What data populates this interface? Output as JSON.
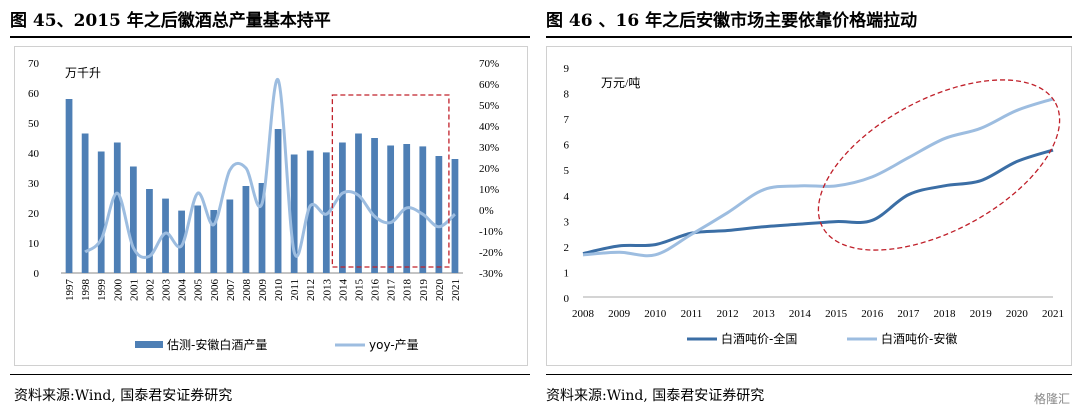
{
  "left": {
    "title": "图 45、2015 年之后徽酒总产量基本持平",
    "source": "资料来源:Wind, 国泰君安证券研究",
    "chart_data": {
      "type": "bar",
      "categories": [
        "1997",
        "1998",
        "1999",
        "2000",
        "2001",
        "2002",
        "2003",
        "2004",
        "2005",
        "2006",
        "2007",
        "2008",
        "2009",
        "2010",
        "2011",
        "2012",
        "2013",
        "2014",
        "2015",
        "2016",
        "2017",
        "2018",
        "2019",
        "2020",
        "2021"
      ],
      "unit_label": "万千升",
      "y_left_ticks": [
        "0",
        "10",
        "20",
        "30",
        "40",
        "50",
        "60",
        "70"
      ],
      "y_right_ticks": [
        "-30%",
        "-20%",
        "-10%",
        "0%",
        "10%",
        "20%",
        "30%",
        "40%",
        "50%",
        "60%",
        "70%"
      ],
      "ylim_left": [
        0,
        70
      ],
      "ylim_right": [
        -30,
        70
      ],
      "series": [
        {
          "name": "估测-安徽白酒产量",
          "type": "bar",
          "axis": "left",
          "color": "#4e7fb5",
          "values": [
            58,
            46.5,
            40.5,
            43.5,
            35.5,
            28,
            24.8,
            20.8,
            22.5,
            21,
            24.5,
            29,
            30,
            48,
            39.5,
            40.8,
            40.2,
            43.5,
            46.5,
            45,
            42.5,
            43,
            42.2,
            39,
            38
          ]
        },
        {
          "name": "yoy-产量",
          "type": "line",
          "axis": "right",
          "color": "#9dbde0",
          "values": [
            null,
            -20,
            -14,
            8,
            -18,
            -22,
            -11,
            -17,
            8,
            -7,
            19,
            20,
            3,
            62,
            -20,
            2,
            -2,
            8,
            7,
            -3,
            -6,
            1,
            -2,
            -8,
            -2
          ]
        }
      ]
    }
  },
  "right": {
    "title": "图 46 、16 年之后安徽市场主要依靠价格端拉动",
    "source": "资料来源:Wind, 国泰君安证券研究",
    "chart_data": {
      "type": "line",
      "categories": [
        "2008",
        "2009",
        "2010",
        "2011",
        "2012",
        "2013",
        "2014",
        "2015",
        "2016",
        "2017",
        "2018",
        "2019",
        "2020",
        "2021"
      ],
      "unit_label": "万元/吨",
      "y_ticks": [
        "0",
        "1",
        "2",
        "3",
        "4",
        "5",
        "6",
        "7",
        "8",
        "9"
      ],
      "ylim": [
        0,
        9
      ],
      "series": [
        {
          "name": "白酒吨价-全国",
          "color": "#3b6ea5",
          "values": [
            1.7,
            2.0,
            2.05,
            2.5,
            2.6,
            2.75,
            2.85,
            2.95,
            3.0,
            4.0,
            4.35,
            4.55,
            5.3,
            5.75
          ]
        },
        {
          "name": "白酒吨价-安徽",
          "color": "#9dbde0",
          "values": [
            1.65,
            1.75,
            1.65,
            2.45,
            3.3,
            4.2,
            4.35,
            4.35,
            4.7,
            5.45,
            6.2,
            6.6,
            7.3,
            7.75
          ]
        }
      ]
    }
  },
  "watermark": "格隆汇"
}
